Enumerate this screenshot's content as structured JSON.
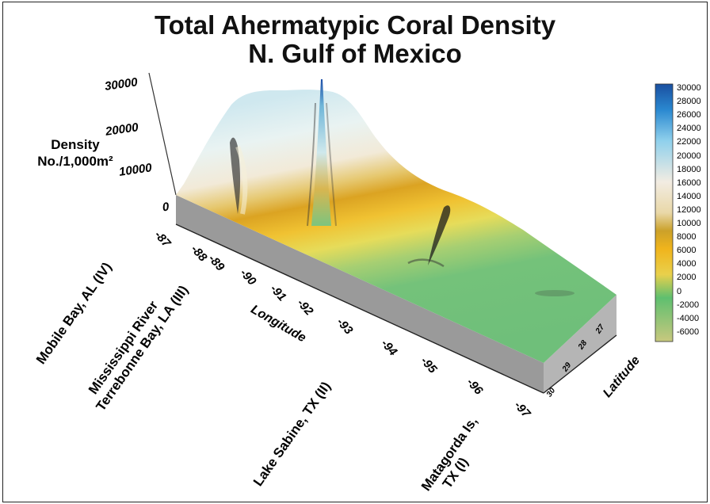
{
  "chart_data": {
    "type": "surface-3d",
    "title": "Total Ahermatypic Coral Density",
    "subtitle": "N. Gulf of Mexico",
    "zlabel": [
      "Density",
      "No./1,000m²"
    ],
    "xlabel": "Longitude",
    "ylabel": "Latitude",
    "zticks": [
      "30000",
      "20000",
      "10000",
      "0"
    ],
    "xticks": [
      "-87",
      "-88",
      "-89",
      "-90",
      "-91",
      "-92",
      "-93",
      "-94",
      "-95",
      "-96",
      "-97"
    ],
    "yticks": [
      "27",
      "28",
      "29",
      "30"
    ],
    "colorbar_ticks": [
      "30000",
      "28000",
      "26000",
      "24000",
      "22000",
      "20000",
      "18000",
      "16000",
      "14000",
      "12000",
      "10000",
      "8000",
      "6000",
      "4000",
      "2000",
      "0",
      "-2000",
      "-4000",
      "-6000"
    ],
    "colorbar_colors": [
      "#1a4fa0",
      "#2a88d0",
      "#8fd0ec",
      "#f2ece2",
      "#e9d8a8",
      "#cba12a",
      "#f0b41c",
      "#e9d04c",
      "#5fbf6f",
      "#c8c87e"
    ],
    "sites": [
      [
        "Mobile Bay, AL (IV)"
      ],
      [
        "Mississippi River",
        "Terrebonne Bay, LA (III)"
      ],
      [
        "Lake Sabine, TX (II)"
      ],
      [
        "Matagorda Is,",
        "TX (I)"
      ]
    ],
    "peaks_approx": [
      {
        "longitude": -88.9,
        "density": 12000
      },
      {
        "longitude": -89.7,
        "density": 30000
      },
      {
        "longitude": -93.2,
        "density": 9000
      }
    ]
  }
}
